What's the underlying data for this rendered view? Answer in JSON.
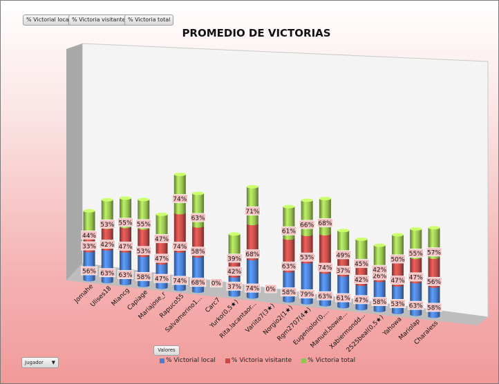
{
  "filters": {
    "local": "% Victorial local",
    "visitante": "% Victoria visitante",
    "total": "% Victoria total"
  },
  "valores_label": "Valores",
  "jugador_label": "Jugador",
  "colors": {
    "local": "#4a7ecf",
    "visitante": "#c14c48",
    "total": "#97c151"
  },
  "chart_data": {
    "type": "bar",
    "stacked": true,
    "three_d": true,
    "title": "PROMEDIO DE VICTORIAS",
    "categories": [
      "Jomahe",
      "Ulises18",
      "Miancg",
      "Capiage",
      "Mariajose_r",
      "Rapuco55",
      "Salvamerino1...",
      "Carc7",
      "Yurko(0,5★)",
      "Rita.lacantaor...",
      "Variito7(3★)",
      "Norgio2(1★)",
      "Rgm2707(4★)",
      "Eugeniolor(0,...",
      "Manuel.bowie...",
      "Xabiermondd...",
      "2525beal(0,5★)",
      "Yahowa",
      "Mariolap",
      "Charaless"
    ],
    "series": [
      {
        "name": "% Victorial local",
        "values": [
          56,
          63,
          63,
          58,
          47,
          74,
          68,
          0,
          37,
          74,
          0,
          58,
          79,
          63,
          61,
          47,
          58,
          53,
          63,
          58
        ]
      },
      {
        "name": "% Victoria visitante",
        "values": [
          33,
          42,
          47,
          53,
          47,
          74,
          58,
          0,
          42,
          68,
          0,
          63,
          53,
          74,
          37,
          42,
          26,
          47,
          47,
          56
        ]
      },
      {
        "name": "% Victoria total",
        "values": [
          44,
          53,
          55,
          55,
          47,
          74,
          63,
          0,
          39,
          71,
          0,
          61,
          66,
          68,
          49,
          45,
          42,
          50,
          55,
          57
        ]
      }
    ],
    "value_format": "percent",
    "legend_position": "bottom"
  }
}
